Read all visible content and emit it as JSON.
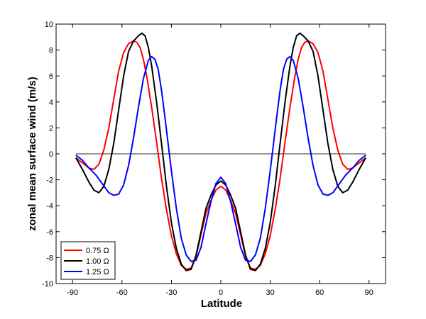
{
  "chart_data": {
    "type": "line",
    "xlabel": "Latitude",
    "ylabel": "zonal mean surface wind (m/s)",
    "xlim": [
      -100,
      100
    ],
    "ylim": [
      -10,
      10
    ],
    "xticks": [
      -90,
      -60,
      -30,
      0,
      30,
      60,
      90
    ],
    "yticks": [
      -10,
      -8,
      -6,
      -4,
      -2,
      0,
      2,
      4,
      6,
      8,
      10
    ],
    "xtick_labels": [
      "-90",
      "-60",
      "-30",
      "0",
      "30",
      "60",
      "90"
    ],
    "ytick_labels": [
      "-10",
      "-8",
      "-6",
      "-4",
      "-2",
      "0",
      "2",
      "4",
      "6",
      "8",
      "10"
    ],
    "grid": false,
    "legend_position": "bottom-left",
    "reference_line": {
      "y": 0,
      "color": "#555555"
    },
    "series": [
      {
        "name": "0.75 Ω",
        "color": "#ff0000",
        "x": [
          -88,
          -84,
          -80,
          -77,
          -74,
          -71,
          -68,
          -65,
          -62,
          -59,
          -56,
          -53,
          -51,
          -49,
          -47,
          -45,
          -42,
          -39,
          -36,
          -33,
          -30,
          -27,
          -24,
          -21,
          -18,
          -15,
          -12,
          -9,
          -6,
          -3,
          0,
          3,
          6,
          9,
          12,
          15,
          18,
          21,
          24,
          27,
          30,
          33,
          36,
          39,
          42,
          45,
          47,
          49,
          51,
          53,
          56,
          59,
          62,
          65,
          68,
          71,
          74,
          77,
          80,
          84,
          88
        ],
        "values": [
          -0.3,
          -0.7,
          -1.1,
          -1.2,
          -0.8,
          0.3,
          2.0,
          4.2,
          6.4,
          7.8,
          8.5,
          8.7,
          8.6,
          8.2,
          7.3,
          6.0,
          3.6,
          0.9,
          -1.9,
          -4.3,
          -6.3,
          -7.7,
          -8.6,
          -8.9,
          -8.8,
          -7.9,
          -6.2,
          -4.6,
          -3.6,
          -2.8,
          -2.5,
          -2.8,
          -3.6,
          -4.6,
          -6.2,
          -7.9,
          -8.8,
          -8.9,
          -8.6,
          -7.7,
          -6.3,
          -4.3,
          -1.9,
          0.9,
          3.6,
          6.0,
          7.3,
          8.2,
          8.6,
          8.7,
          8.5,
          7.8,
          6.4,
          4.2,
          2.0,
          0.3,
          -0.8,
          -1.2,
          -1.1,
          -0.7,
          -0.3
        ]
      },
      {
        "name": "1.00 Ω",
        "color": "#000000",
        "x": [
          -88,
          -84,
          -80,
          -77,
          -74,
          -71,
          -68,
          -65,
          -62,
          -59,
          -56,
          -53,
          -50,
          -48,
          -46,
          -44,
          -42,
          -39,
          -36,
          -33,
          -30,
          -27,
          -24,
          -21,
          -18,
          -15,
          -12,
          -9,
          -6,
          -3,
          0,
          3,
          6,
          9,
          12,
          15,
          18,
          21,
          24,
          27,
          30,
          33,
          36,
          39,
          42,
          44,
          46,
          48,
          50,
          53,
          56,
          59,
          62,
          65,
          68,
          71,
          74,
          77,
          80,
          84,
          88
        ],
        "values": [
          -0.3,
          -1.2,
          -2.2,
          -2.8,
          -3.0,
          -2.5,
          -1.2,
          0.8,
          3.4,
          6.0,
          7.9,
          8.7,
          9.1,
          9.3,
          9.1,
          8.2,
          6.8,
          4.0,
          0.8,
          -2.5,
          -5.3,
          -7.3,
          -8.5,
          -9.0,
          -8.9,
          -7.8,
          -6.0,
          -4.2,
          -3.2,
          -2.4,
          -2.1,
          -2.4,
          -3.2,
          -4.2,
          -6.0,
          -7.8,
          -8.9,
          -9.0,
          -8.5,
          -7.3,
          -5.3,
          -2.5,
          0.8,
          4.0,
          6.8,
          8.2,
          9.1,
          9.3,
          9.1,
          8.7,
          7.9,
          6.0,
          3.4,
          0.8,
          -1.2,
          -2.5,
          -3.0,
          -2.8,
          -2.2,
          -1.2,
          -0.3
        ]
      },
      {
        "name": "1.25 Ω",
        "color": "#0000ff",
        "x": [
          -88,
          -84,
          -80,
          -76,
          -72,
          -68,
          -65,
          -62,
          -59,
          -56,
          -53,
          -50,
          -47,
          -44,
          -42,
          -40,
          -38,
          -36,
          -34,
          -32,
          -30,
          -27,
          -24,
          -21,
          -18,
          -15,
          -12,
          -9,
          -6,
          -3,
          0,
          3,
          6,
          9,
          12,
          15,
          18,
          21,
          24,
          27,
          30,
          32,
          34,
          36,
          38,
          40,
          42,
          44,
          47,
          50,
          53,
          56,
          59,
          62,
          65,
          68,
          72,
          76,
          80,
          84,
          88
        ],
        "values": [
          -0.1,
          -0.5,
          -1.1,
          -1.6,
          -2.3,
          -3.0,
          -3.2,
          -3.1,
          -2.4,
          -0.9,
          1.2,
          3.6,
          5.8,
          7.2,
          7.5,
          7.3,
          6.5,
          4.9,
          2.9,
          0.8,
          -1.3,
          -4.2,
          -6.5,
          -7.8,
          -8.3,
          -8.2,
          -7.2,
          -5.4,
          -3.7,
          -2.3,
          -1.8,
          -2.3,
          -3.7,
          -5.4,
          -7.2,
          -8.2,
          -8.3,
          -7.8,
          -6.5,
          -4.2,
          -1.3,
          0.8,
          2.9,
          4.9,
          6.5,
          7.3,
          7.5,
          7.2,
          5.8,
          3.6,
          1.2,
          -0.9,
          -2.4,
          -3.1,
          -3.2,
          -3.0,
          -2.3,
          -1.6,
          -1.1,
          -0.5,
          -0.1
        ]
      }
    ]
  }
}
